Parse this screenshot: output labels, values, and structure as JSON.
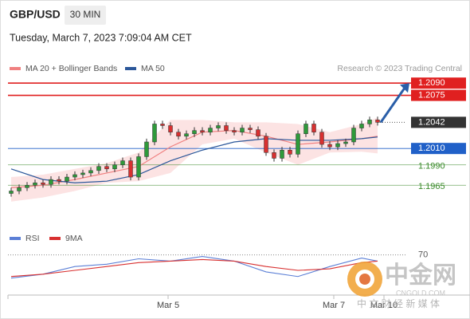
{
  "header": {
    "symbol": "GBP/USD",
    "interval": "30 MIN",
    "datetime": "Tuesday, March 7, 2023 7:09:04 AM CET",
    "credit": "Research © 2023 Trading Central"
  },
  "watermark": {
    "name": "中金网",
    "site": "CNGOLD.COM",
    "slogan": "中 文 财 经 新 媒 体"
  },
  "chart_data": [
    {
      "type": "candlestick",
      "open": [
        1.1955,
        1.1958,
        1.1962,
        1.1965,
        1.1968,
        1.1966,
        1.1972,
        1.197,
        1.1975,
        1.1978,
        1.198,
        1.1983,
        1.1988,
        1.1985,
        1.199,
        1.1995,
        1.1975,
        1.2,
        1.2018,
        1.204,
        1.2038,
        1.203,
        1.2025,
        1.2028,
        1.2032,
        1.203,
        1.2035,
        1.2038,
        1.2032,
        1.203,
        1.2035,
        1.2033,
        1.2025,
        1.2005,
        1.1998,
        1.2008,
        1.2003,
        1.2028,
        1.204,
        1.203,
        1.2015,
        1.2012,
        1.2016,
        1.2018,
        1.2035,
        1.204,
        1.2045
      ],
      "high": [
        1.1962,
        1.1966,
        1.1969,
        1.1972,
        1.1972,
        1.1976,
        1.1976,
        1.1979,
        1.1982,
        1.1984,
        1.1987,
        1.1992,
        1.1992,
        1.1994,
        1.1999,
        1.1999,
        1.2004,
        1.2022,
        1.2044,
        1.2044,
        1.2042,
        1.2034,
        1.2032,
        1.2036,
        1.2036,
        1.2039,
        1.2042,
        1.2042,
        1.2036,
        1.2039,
        1.2039,
        1.2037,
        1.2029,
        1.2009,
        1.2012,
        1.2012,
        1.2032,
        1.2044,
        1.2044,
        1.2034,
        1.2019,
        1.202,
        1.2022,
        1.2039,
        1.2044,
        1.2049,
        1.2049
      ],
      "low": [
        1.1951,
        1.1954,
        1.1958,
        1.1961,
        1.1962,
        1.1962,
        1.1966,
        1.1966,
        1.1971,
        1.1974,
        1.1976,
        1.1979,
        1.1981,
        1.1981,
        1.1986,
        1.1971,
        1.1971,
        1.1996,
        1.2014,
        1.2034,
        1.2026,
        1.2021,
        1.2021,
        1.2024,
        1.2026,
        1.2026,
        1.2031,
        1.2028,
        1.2026,
        1.2026,
        1.2029,
        1.2021,
        1.2001,
        1.1994,
        1.1994,
        1.1999,
        1.1999,
        1.2024,
        1.2026,
        1.2011,
        1.2008,
        1.2008,
        1.2012,
        1.2014,
        1.2031,
        1.2036,
        1.2038
      ],
      "close": [
        1.1958,
        1.1962,
        1.1965,
        1.1968,
        1.1966,
        1.1972,
        1.197,
        1.1975,
        1.1978,
        1.198,
        1.1983,
        1.1988,
        1.1985,
        1.199,
        1.1995,
        1.1975,
        1.2,
        1.2018,
        1.204,
        1.2038,
        1.203,
        1.2025,
        1.2028,
        1.2032,
        1.203,
        1.2035,
        1.2038,
        1.2032,
        1.203,
        1.2035,
        1.2033,
        1.2025,
        1.2005,
        1.1998,
        1.2008,
        1.2003,
        1.2028,
        1.204,
        1.203,
        1.2015,
        1.2012,
        1.2016,
        1.2018,
        1.2035,
        1.204,
        1.2045,
        1.2042
      ],
      "up_color": "#2e9a3a",
      "down_color": "#d83030",
      "ma_x": [
        0,
        4,
        8,
        12,
        16,
        20,
        24,
        28,
        32,
        36,
        40,
        44,
        46
      ],
      "series": [
        {
          "name": "MA 20 + Bollinger Bands",
          "color": "#f08080",
          "values": [
            1.1962,
            1.1965,
            1.1972,
            1.198,
            1.1988,
            1.2012,
            1.203,
            1.2032,
            1.2025,
            1.2015,
            1.2018,
            1.2022,
            1.2025
          ],
          "bb_upper": [
            1.1975,
            1.1978,
            1.1985,
            1.1992,
            1.2005,
            1.2045,
            1.2045,
            1.2042,
            1.2042,
            1.204,
            1.203,
            1.204,
            1.2048
          ],
          "bb_lower": [
            1.1945,
            1.195,
            1.1958,
            1.1968,
            1.197,
            1.198,
            1.2015,
            1.2022,
            1.2005,
            1.199,
            1.2005,
            1.2006,
            1.2004
          ]
        },
        {
          "name": "MA 50",
          "color": "#2b579a",
          "values": [
            1.1985,
            1.1972,
            1.1968,
            1.197,
            1.1978,
            1.1995,
            1.2008,
            1.2018,
            1.2022,
            1.202,
            1.202,
            1.2022,
            1.2024
          ]
        }
      ],
      "levels": [
        {
          "value": 1.209,
          "label": "1.2090",
          "color": "#e02020"
        },
        {
          "value": 1.2075,
          "label": "1.2075",
          "color": "#e02020"
        },
        {
          "value": 1.2042,
          "label": "1.2042",
          "color": "#333333"
        },
        {
          "value": 1.201,
          "label": "1.2010",
          "color": "#2060c8"
        },
        {
          "value": 1.199,
          "label": "1.1990",
          "color": "#3a8a2a"
        },
        {
          "value": 1.1965,
          "label": "1.1965",
          "color": "#3a8a2a"
        }
      ],
      "ylim": [
        1.1936,
        1.2099
      ],
      "xlim": [
        -0.4,
        49.6
      ],
      "xticks": [
        {
          "value": 19.7,
          "label": "Mar 5"
        },
        {
          "value": 40.5,
          "label": "Mar 7"
        },
        {
          "value": 46.8,
          "label": "Mar 10"
        }
      ]
    },
    {
      "type": "line",
      "x": [
        0,
        4,
        8,
        12,
        16,
        20,
        24,
        28,
        32,
        36,
        40,
        44,
        46
      ],
      "series": [
        {
          "name": "RSI",
          "color": "#5b7fd6",
          "values": [
            40,
            45,
            55,
            58,
            65,
            62,
            68,
            62,
            48,
            42,
            55,
            66,
            62
          ]
        },
        {
          "name": "9MA",
          "color": "#d83030",
          "values": [
            42,
            45,
            50,
            55,
            60,
            62,
            64,
            62,
            55,
            50,
            52,
            60,
            62
          ]
        }
      ],
      "ylim": [
        20,
        80
      ],
      "yticks": [
        70
      ],
      "xlim": [
        -0.4,
        49.6
      ]
    }
  ]
}
